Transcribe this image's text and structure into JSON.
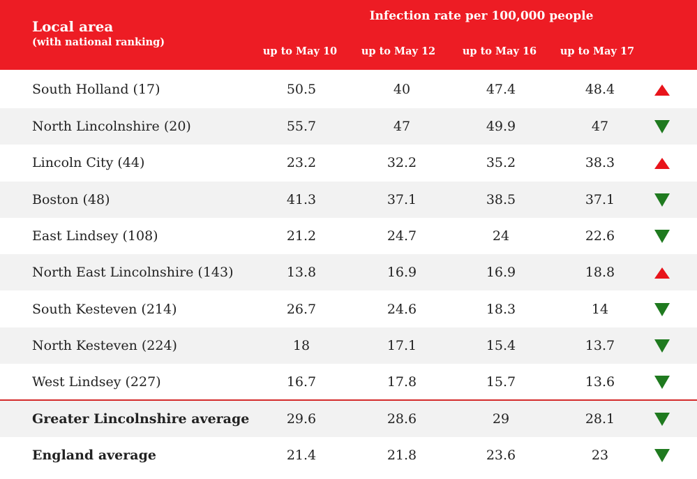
{
  "colors": {
    "header_bg": "#ed1c24",
    "up_arrow": "#e8141b",
    "down_arrow": "#1f7a1f"
  },
  "chart_data": {
    "type": "table",
    "title": "Infection rate per 100,000 people",
    "row_header": "Local area",
    "row_header_sub": "(with national ranking)",
    "columns": [
      "up to May 10",
      "up to May 12",
      "up to May 16",
      "up to May 17"
    ],
    "rows": [
      {
        "name": "South Holland (17)",
        "values": [
          "50.5",
          "40",
          "47.4",
          "48.4"
        ],
        "trend": "up",
        "bold": false
      },
      {
        "name": "North Lincolnshire (20)",
        "values": [
          "55.7",
          "47",
          "49.9",
          "47"
        ],
        "trend": "down",
        "bold": false
      },
      {
        "name": "Lincoln City (44)",
        "values": [
          "23.2",
          "32.2",
          "35.2",
          "38.3"
        ],
        "trend": "up",
        "bold": false
      },
      {
        "name": "Boston (48)",
        "values": [
          "41.3",
          "37.1",
          "38.5",
          "37.1"
        ],
        "trend": "down",
        "bold": false
      },
      {
        "name": "East Lindsey (108)",
        "values": [
          "21.2",
          "24.7",
          "24",
          "22.6"
        ],
        "trend": "down",
        "bold": false
      },
      {
        "name": "North East Lincolnshire (143)",
        "values": [
          "13.8",
          "16.9",
          "16.9",
          "18.8"
        ],
        "trend": "up",
        "bold": false
      },
      {
        "name": "South Kesteven (214)",
        "values": [
          "26.7",
          "24.6",
          "18.3",
          "14"
        ],
        "trend": "down",
        "bold": false
      },
      {
        "name": "North Kesteven (224)",
        "values": [
          "18",
          "17.1",
          "15.4",
          "13.7"
        ],
        "trend": "down",
        "bold": false
      },
      {
        "name": "West Lindsey (227)",
        "values": [
          "16.7",
          "17.8",
          "15.7",
          "13.6"
        ],
        "trend": "down",
        "bold": false
      },
      {
        "name": "Greater Lincolnshire average",
        "values": [
          "29.6",
          "28.6",
          "29",
          "28.1"
        ],
        "trend": "down",
        "bold": true
      },
      {
        "name": "England average",
        "values": [
          "21.4",
          "21.8",
          "23.6",
          "23"
        ],
        "trend": "down",
        "bold": true
      }
    ]
  }
}
